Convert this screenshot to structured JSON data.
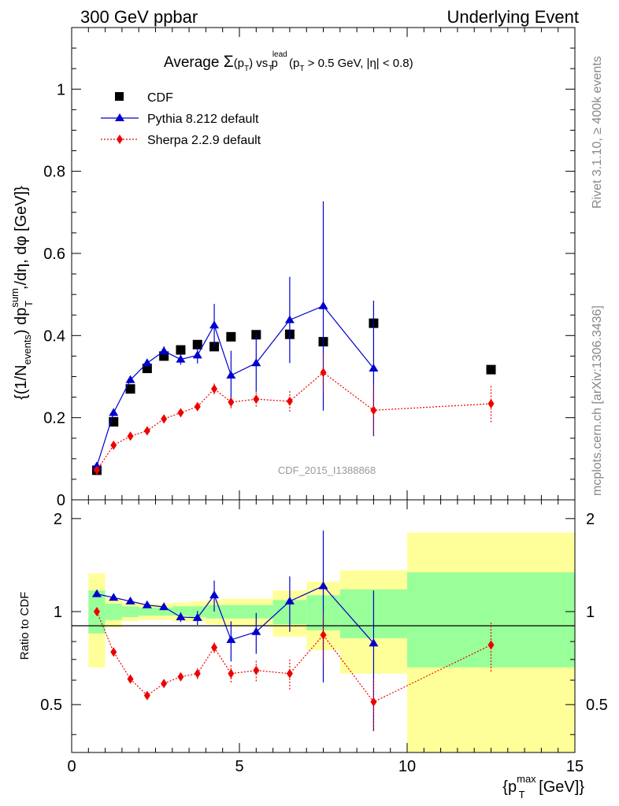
{
  "header": {
    "left": "300 GeV ppbar",
    "right": "Underlying Event"
  },
  "side": {
    "rivet": "Rivet 3.1.10, ≥ 400k events",
    "mcplots": "mcplots.cern.ch [arXiv:1306.3436]"
  },
  "chart_data": [
    {
      "type": "scatter",
      "title": "Average Σ(p_T) vs p_T^lead (p_T > 0.5 GeV, |η| < 0.8)",
      "title_parts": {
        "a": "Average ",
        "sigma": "Σ",
        "b": "(p",
        "b_sub": "T",
        "c": ") vs p",
        "c_sup": "lead",
        "c_sub": "T",
        "d": " (p",
        "d_sub": "T",
        "e": " > 0.5 GeV, |η| < 0.8)"
      },
      "watermark": "CDF_2015_I1388868",
      "ylabel": "{(1/N_events) dp_T^sum/dη, dφ [GeV]}",
      "ylabel_parts": {
        "a": "{(1/N",
        "a_sub": "events",
        "b": ") dp",
        "b_sup": "sum",
        "b_sub": "T",
        "c": ",/dη, dφ [GeV]}"
      },
      "xlim": [
        0,
        15
      ],
      "ylim": [
        0,
        1.15
      ],
      "yticks": [
        0,
        0.2,
        0.4,
        0.6,
        0.8,
        1
      ],
      "ytick_labels": [
        "0",
        "0.2",
        "0.4",
        "0.6",
        "0.8",
        "1"
      ],
      "legend": {
        "position": "top-left",
        "entries": [
          "CDF",
          "Pythia 8.212 default",
          "Sherpa 2.2.9 default"
        ]
      },
      "series": [
        {
          "name": "CDF",
          "color": "#000000",
          "marker": "square",
          "x": [
            0.75,
            1.25,
            1.75,
            2.25,
            2.75,
            3.25,
            3.75,
            4.25,
            4.75,
            5.5,
            6.5,
            7.5,
            9.0,
            12.5
          ],
          "y": [
            0.072,
            0.19,
            0.27,
            0.32,
            0.35,
            0.365,
            0.378,
            0.373,
            0.397,
            0.402,
            0.403,
            0.385,
            0.43,
            0.317
          ]
        },
        {
          "name": "Pythia 8.212 default",
          "color": "#0000cc",
          "marker": "triangle",
          "line": "solid",
          "x": [
            0.75,
            1.25,
            1.75,
            2.25,
            2.75,
            3.25,
            3.75,
            4.25,
            4.75,
            5.5,
            6.5,
            7.5,
            9.0
          ],
          "y": [
            0.082,
            0.212,
            0.292,
            0.333,
            0.362,
            0.342,
            0.352,
            0.425,
            0.303,
            0.333,
            0.438,
            0.472,
            0.32
          ],
          "err": [
            0.005,
            0.008,
            0.008,
            0.008,
            0.012,
            0.013,
            0.02,
            0.052,
            0.06,
            0.07,
            0.105,
            0.255,
            0.165
          ]
        },
        {
          "name": "Sherpa 2.2.9 default",
          "color": "#ee0000",
          "marker": "diamond",
          "line": "dotted",
          "x": [
            0.75,
            1.25,
            1.75,
            2.25,
            2.75,
            3.25,
            3.75,
            4.25,
            4.75,
            5.5,
            6.5,
            7.5,
            9.0,
            12.5
          ],
          "y": [
            0.072,
            0.133,
            0.155,
            0.168,
            0.197,
            0.212,
            0.227,
            0.27,
            0.238,
            0.245,
            0.24,
            0.31,
            0.218,
            0.234
          ],
          "err": [
            0.003,
            0.005,
            0.005,
            0.006,
            0.007,
            0.008,
            0.01,
            0.013,
            0.015,
            0.018,
            0.025,
            0.045,
            0.06,
            0.045
          ]
        }
      ]
    },
    {
      "type": "scatter",
      "ylabel": "Ratio to CDF",
      "xlabel": "{p_T^max [GeV]}",
      "xlabel_parts": {
        "a": "{p",
        "a_sup": "max",
        "a_sub": "T",
        "b": " [GeV]}"
      },
      "xlim": [
        0,
        15
      ],
      "ylim": [
        0.35,
        2.3
      ],
      "yscale": "log",
      "xticks": [
        0,
        5,
        10,
        15
      ],
      "xtick_labels": [
        "0",
        "5",
        "10",
        "15"
      ],
      "yticks": [
        0.5,
        1,
        2
      ],
      "ytick_labels": [
        "0.5",
        "1",
        "2"
      ],
      "bands": [
        {
          "x0": 0.5,
          "x1": 1.0,
          "green": [
            0.85,
            1.17
          ],
          "yellow": [
            0.66,
            1.33
          ]
        },
        {
          "x0": 1.0,
          "x1": 1.5,
          "green": [
            0.94,
            1.06
          ],
          "yellow": [
            0.89,
            1.11
          ]
        },
        {
          "x0": 1.5,
          "x1": 2.0,
          "green": [
            0.96,
            1.04
          ],
          "yellow": [
            0.93,
            1.07
          ]
        },
        {
          "x0": 2.0,
          "x1": 2.5,
          "green": [
            0.97,
            1.03
          ],
          "yellow": [
            0.94,
            1.06
          ]
        },
        {
          "x0": 2.5,
          "x1": 3.0,
          "green": [
            0.97,
            1.03
          ],
          "yellow": [
            0.94,
            1.06
          ]
        },
        {
          "x0": 3.0,
          "x1": 3.5,
          "green": [
            0.97,
            1.04
          ],
          "yellow": [
            0.93,
            1.07
          ]
        },
        {
          "x0": 3.5,
          "x1": 4.0,
          "green": [
            0.96,
            1.04
          ],
          "yellow": [
            0.93,
            1.08
          ]
        },
        {
          "x0": 4.0,
          "x1": 4.5,
          "green": [
            0.95,
            1.05
          ],
          "yellow": [
            0.91,
            1.09
          ]
        },
        {
          "x0": 4.5,
          "x1": 5.0,
          "green": [
            0.95,
            1.05
          ],
          "yellow": [
            0.9,
            1.1
          ]
        },
        {
          "x0": 5.0,
          "x1": 6.0,
          "green": [
            0.95,
            1.05
          ],
          "yellow": [
            0.9,
            1.1
          ]
        },
        {
          "x0": 6.0,
          "x1": 7.0,
          "green": [
            0.91,
            1.09
          ],
          "yellow": [
            0.83,
            1.17
          ]
        },
        {
          "x0": 7.0,
          "x1": 8.0,
          "green": [
            0.87,
            1.13
          ],
          "yellow": [
            0.75,
            1.25
          ]
        },
        {
          "x0": 8.0,
          "x1": 10.0,
          "green": [
            0.82,
            1.18
          ],
          "yellow": [
            0.63,
            1.36
          ]
        },
        {
          "x0": 10.0,
          "x1": 15.0,
          "green": [
            0.66,
            1.34
          ],
          "yellow": [
            0.3,
            1.8
          ]
        }
      ],
      "series": [
        {
          "name": "Pythia 8.212 default",
          "color": "#0000cc",
          "marker": "triangle",
          "line": "solid",
          "x": [
            0.75,
            1.25,
            1.75,
            2.25,
            2.75,
            3.25,
            3.75,
            4.25,
            4.75,
            5.5,
            6.5,
            7.5,
            9.0
          ],
          "y": [
            1.14,
            1.11,
            1.08,
            1.05,
            1.035,
            0.96,
            0.955,
            1.13,
            0.81,
            0.86,
            1.08,
            1.21,
            0.79
          ],
          "err": [
            0.006,
            0.01,
            0.01,
            0.015,
            0.025,
            0.035,
            0.05,
            0.13,
            0.12,
            0.13,
            0.22,
            0.62,
            0.38
          ]
        },
        {
          "name": "Sherpa 2.2.9 default",
          "color": "#ee0000",
          "marker": "diamond",
          "line": "dotted",
          "x": [
            0.75,
            1.25,
            1.75,
            2.25,
            2.75,
            3.25,
            3.75,
            4.25,
            4.75,
            5.5,
            6.5,
            7.5,
            9.0,
            12.5
          ],
          "y": [
            1.0,
            0.74,
            0.605,
            0.535,
            0.585,
            0.615,
            0.63,
            0.765,
            0.63,
            0.645,
            0.63,
            0.84,
            0.51,
            0.78
          ],
          "err": [
            0.006,
            0.01,
            0.01,
            0.01,
            0.012,
            0.015,
            0.025,
            0.03,
            0.04,
            0.05,
            0.07,
            0.15,
            0.1,
            0.14
          ]
        }
      ]
    }
  ]
}
